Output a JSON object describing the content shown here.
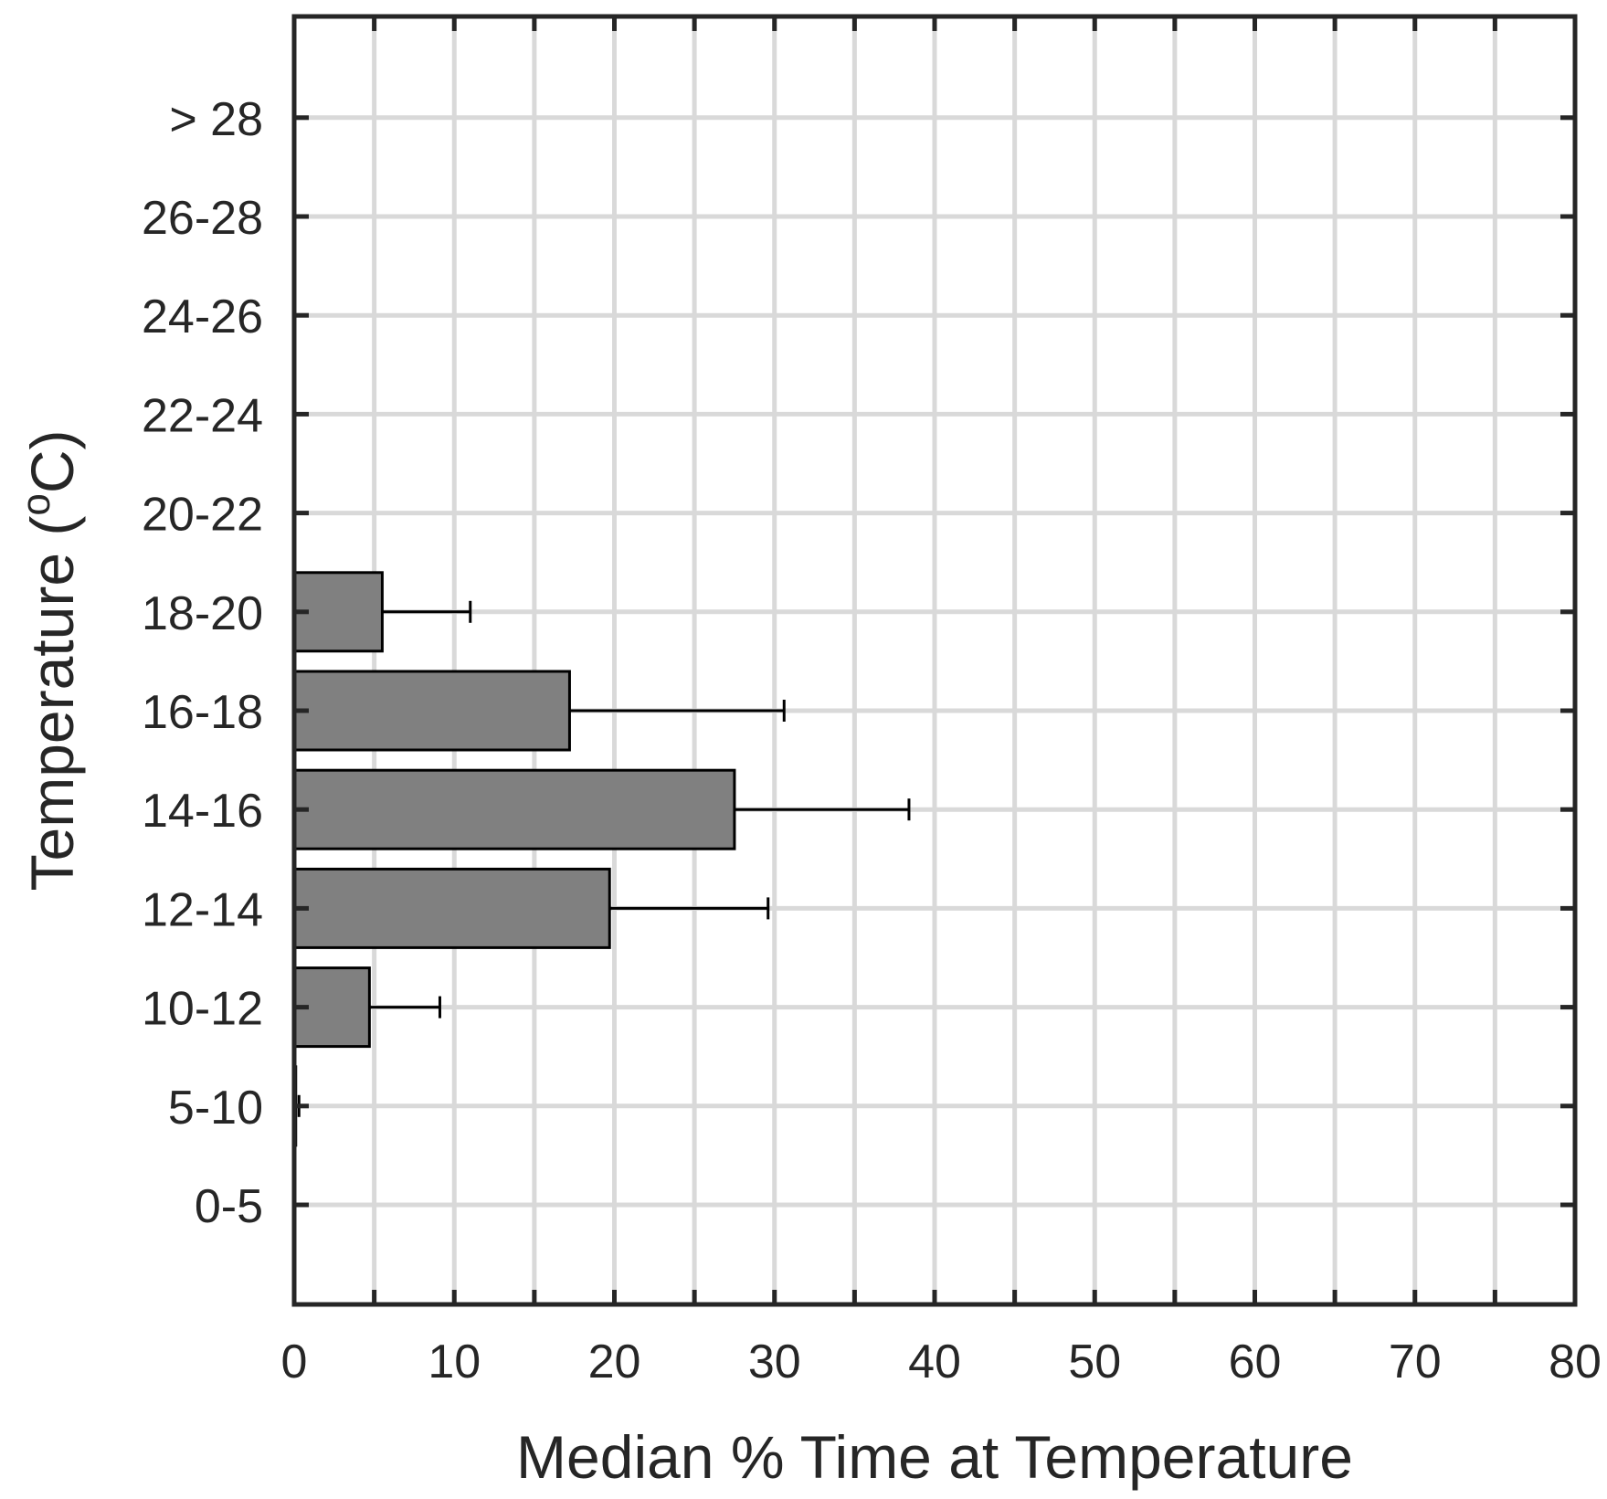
{
  "chart_data": {
    "type": "bar",
    "orientation": "horizontal",
    "categories": [
      "0-5",
      "5-10",
      "10-12",
      "12-14",
      "14-16",
      "16-18",
      "18-20",
      "20-22",
      "22-24",
      "24-26",
      "26-28",
      "> 28"
    ],
    "values": [
      0,
      0.1,
      4.7,
      19.7,
      27.5,
      17.2,
      5.5,
      0,
      0,
      0,
      0,
      0
    ],
    "error_upper": [
      0,
      0.3,
      9.1,
      29.6,
      38.4,
      30.6,
      11.0,
      0,
      0,
      0,
      0,
      0
    ],
    "xlabel": "Median % Time at Temperature",
    "ylabel_main": "Temperature (",
    "ylabel_sup": "o",
    "ylabel_end": "C)",
    "xlim": [
      0,
      80
    ],
    "xticks": [
      0,
      10,
      20,
      30,
      40,
      50,
      60,
      70,
      80
    ],
    "x_minor_step": 5,
    "grid": true,
    "colors": {
      "bar_fill": "#808080",
      "bar_edge": "#000000",
      "grid": "#d9d9d9",
      "axis": "#262626"
    }
  }
}
